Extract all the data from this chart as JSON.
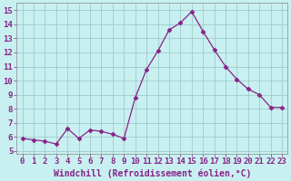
{
  "x": [
    0,
    1,
    2,
    3,
    4,
    5,
    6,
    7,
    8,
    9,
    10,
    11,
    12,
    13,
    14,
    15,
    16,
    17,
    18,
    19,
    20,
    21,
    22,
    23
  ],
  "y": [
    5.9,
    5.8,
    5.7,
    5.5,
    6.6,
    5.9,
    6.5,
    6.4,
    6.2,
    5.9,
    8.8,
    10.8,
    12.1,
    13.6,
    14.1,
    14.9,
    13.5,
    12.2,
    11.0,
    10.1,
    9.4,
    9.0,
    8.1,
    8.1
  ],
  "line_color": "#882288",
  "marker": "D",
  "marker_size": 2.5,
  "bg_color": "#c8f0f0",
  "grid_color": "#a0cccc",
  "xlabel": "Windchill (Refroidissement éolien,°C)",
  "xlabel_color": "#882288",
  "ylabel_ticks": [
    5,
    6,
    7,
    8,
    9,
    10,
    11,
    12,
    13,
    14,
    15
  ],
  "xlim": [
    -0.5,
    23.5
  ],
  "ylim": [
    4.8,
    15.5
  ],
  "tick_fontsize": 6.5,
  "xlabel_fontsize": 7.0
}
